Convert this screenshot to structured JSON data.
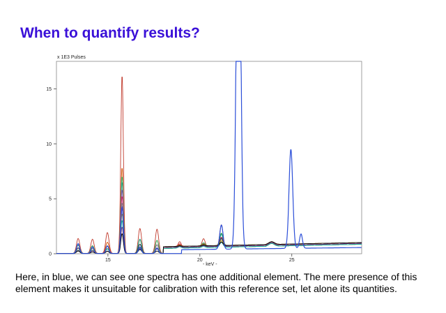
{
  "slide": {
    "title": "When to quantify results?",
    "caption": "Here, in blue, we can see one spectra has one additional element. The mere presence of this element makes it unsuitable for calibration with this reference set, let alone its quantities."
  },
  "chart_data": {
    "type": "line",
    "title": "",
    "ylabel_top": "x 1E3 Pulses",
    "xlabel": "- keV -",
    "xlim": [
      12.2,
      28.8
    ],
    "ylim": [
      0,
      17.5
    ],
    "x_ticks": [
      15,
      20,
      25
    ],
    "y_ticks": [
      0,
      5,
      10,
      15
    ],
    "grid": false,
    "legend": "none",
    "background_peaks_keV": [
      13.38,
      14.16,
      14.97,
      15.77,
      16.74,
      17.67,
      18.9,
      20.2,
      21.17
    ],
    "background_series_colors": [
      "#c0392b",
      "#d35400",
      "#27ae60",
      "#16a085",
      "#8e44ad",
      "#e91e63",
      "#7f8c8d",
      "#2c3e50",
      "#b7950b",
      "#1abc9c",
      "#6c3483",
      "#000000"
    ],
    "background_series_max_counts_kcps": [
      16.2,
      7.8,
      7.0,
      6.5,
      5.8,
      5.2,
      4.6,
      4.2,
      3.6,
      3.0,
      2.4,
      1.8
    ],
    "highlight_series": {
      "color": "#2b4ed8",
      "description": "blue spectrum with additional element",
      "peaks": [
        {
          "x": 22.1,
          "y": 17.5
        },
        {
          "x": 24.95,
          "y": 9.2
        },
        {
          "x": 25.5,
          "y": 1.5
        },
        {
          "x": 21.17,
          "y": 2.7
        },
        {
          "x": 15.77,
          "y": 4.2
        }
      ]
    }
  }
}
